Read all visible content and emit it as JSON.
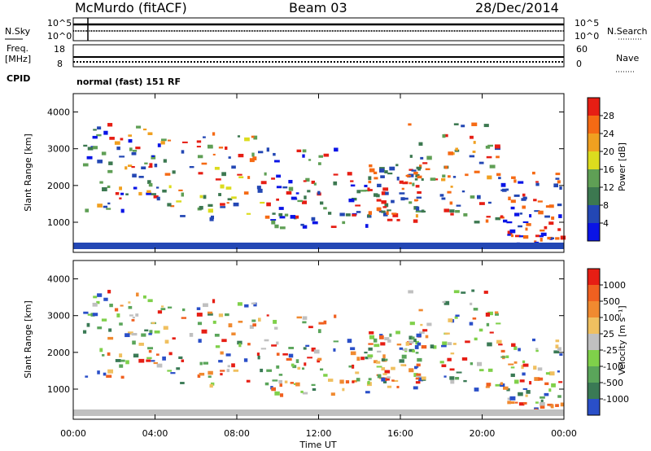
{
  "header": {
    "station": "McMurdo (fitACF)",
    "beam": "Beam 03",
    "date": "28/Dec/2014"
  },
  "status_panels": {
    "noise": {
      "left_label": "N.Sky",
      "left_ticks": [
        "10^5",
        "10^0"
      ],
      "right_label": "N.Search",
      "right_ticks": [
        "10^5",
        "10^0"
      ]
    },
    "freq": {
      "left_label_1": "Freq.",
      "left_label_2": "[MHz]",
      "left_ticks": [
        "18",
        "8"
      ],
      "right_label": "Nave",
      "right_ticks": [
        "60",
        "0"
      ]
    },
    "cpid": {
      "label": "CPID",
      "value": "normal (fast) 151 RF"
    }
  },
  "chart_data": [
    {
      "type": "heatmap",
      "name": "power",
      "ylabel": "Slant Range [km]",
      "xlabel": "",
      "ylim": [
        180,
        4500
      ],
      "yticks": [
        "1000",
        "2000",
        "3000",
        "4000"
      ],
      "colorbar_label": "Power [dB]",
      "colorbar_ticks": [
        "4",
        "8",
        "12",
        "16",
        "20",
        "24",
        "28"
      ],
      "colorbar_range": [
        0,
        32
      ],
      "colorbar_colors": [
        "#0a14e6",
        "#2347b4",
        "#3c7850",
        "#5f9f55",
        "#dcdc1e",
        "#f0a020",
        "#f56a14",
        "#e61e14"
      ]
    },
    {
      "type": "heatmap",
      "name": "velocity",
      "ylabel": "Slant Range [km]",
      "xlabel": "Time UT",
      "ylim": [
        180,
        4500
      ],
      "yticks": [
        "1000",
        "2000",
        "3000",
        "4000"
      ],
      "xticks": [
        "00:00",
        "04:00",
        "08:00",
        "12:00",
        "16:00",
        "20:00",
        "00:00"
      ],
      "xlim_hours": [
        0,
        24
      ],
      "colorbar_label": "Velocity [m s⁻¹]",
      "colorbar_ticks": [
        "1000",
        "500",
        "100",
        "25",
        "-25",
        "-100",
        "-500",
        "-1000"
      ],
      "colorbar_colors": [
        "#2a4fc8",
        "#3a7a55",
        "#5aa55a",
        "#7fd04a",
        "#c0c0c0",
        "#f0c060",
        "#f08a30",
        "#f06020",
        "#e61e14"
      ]
    }
  ]
}
